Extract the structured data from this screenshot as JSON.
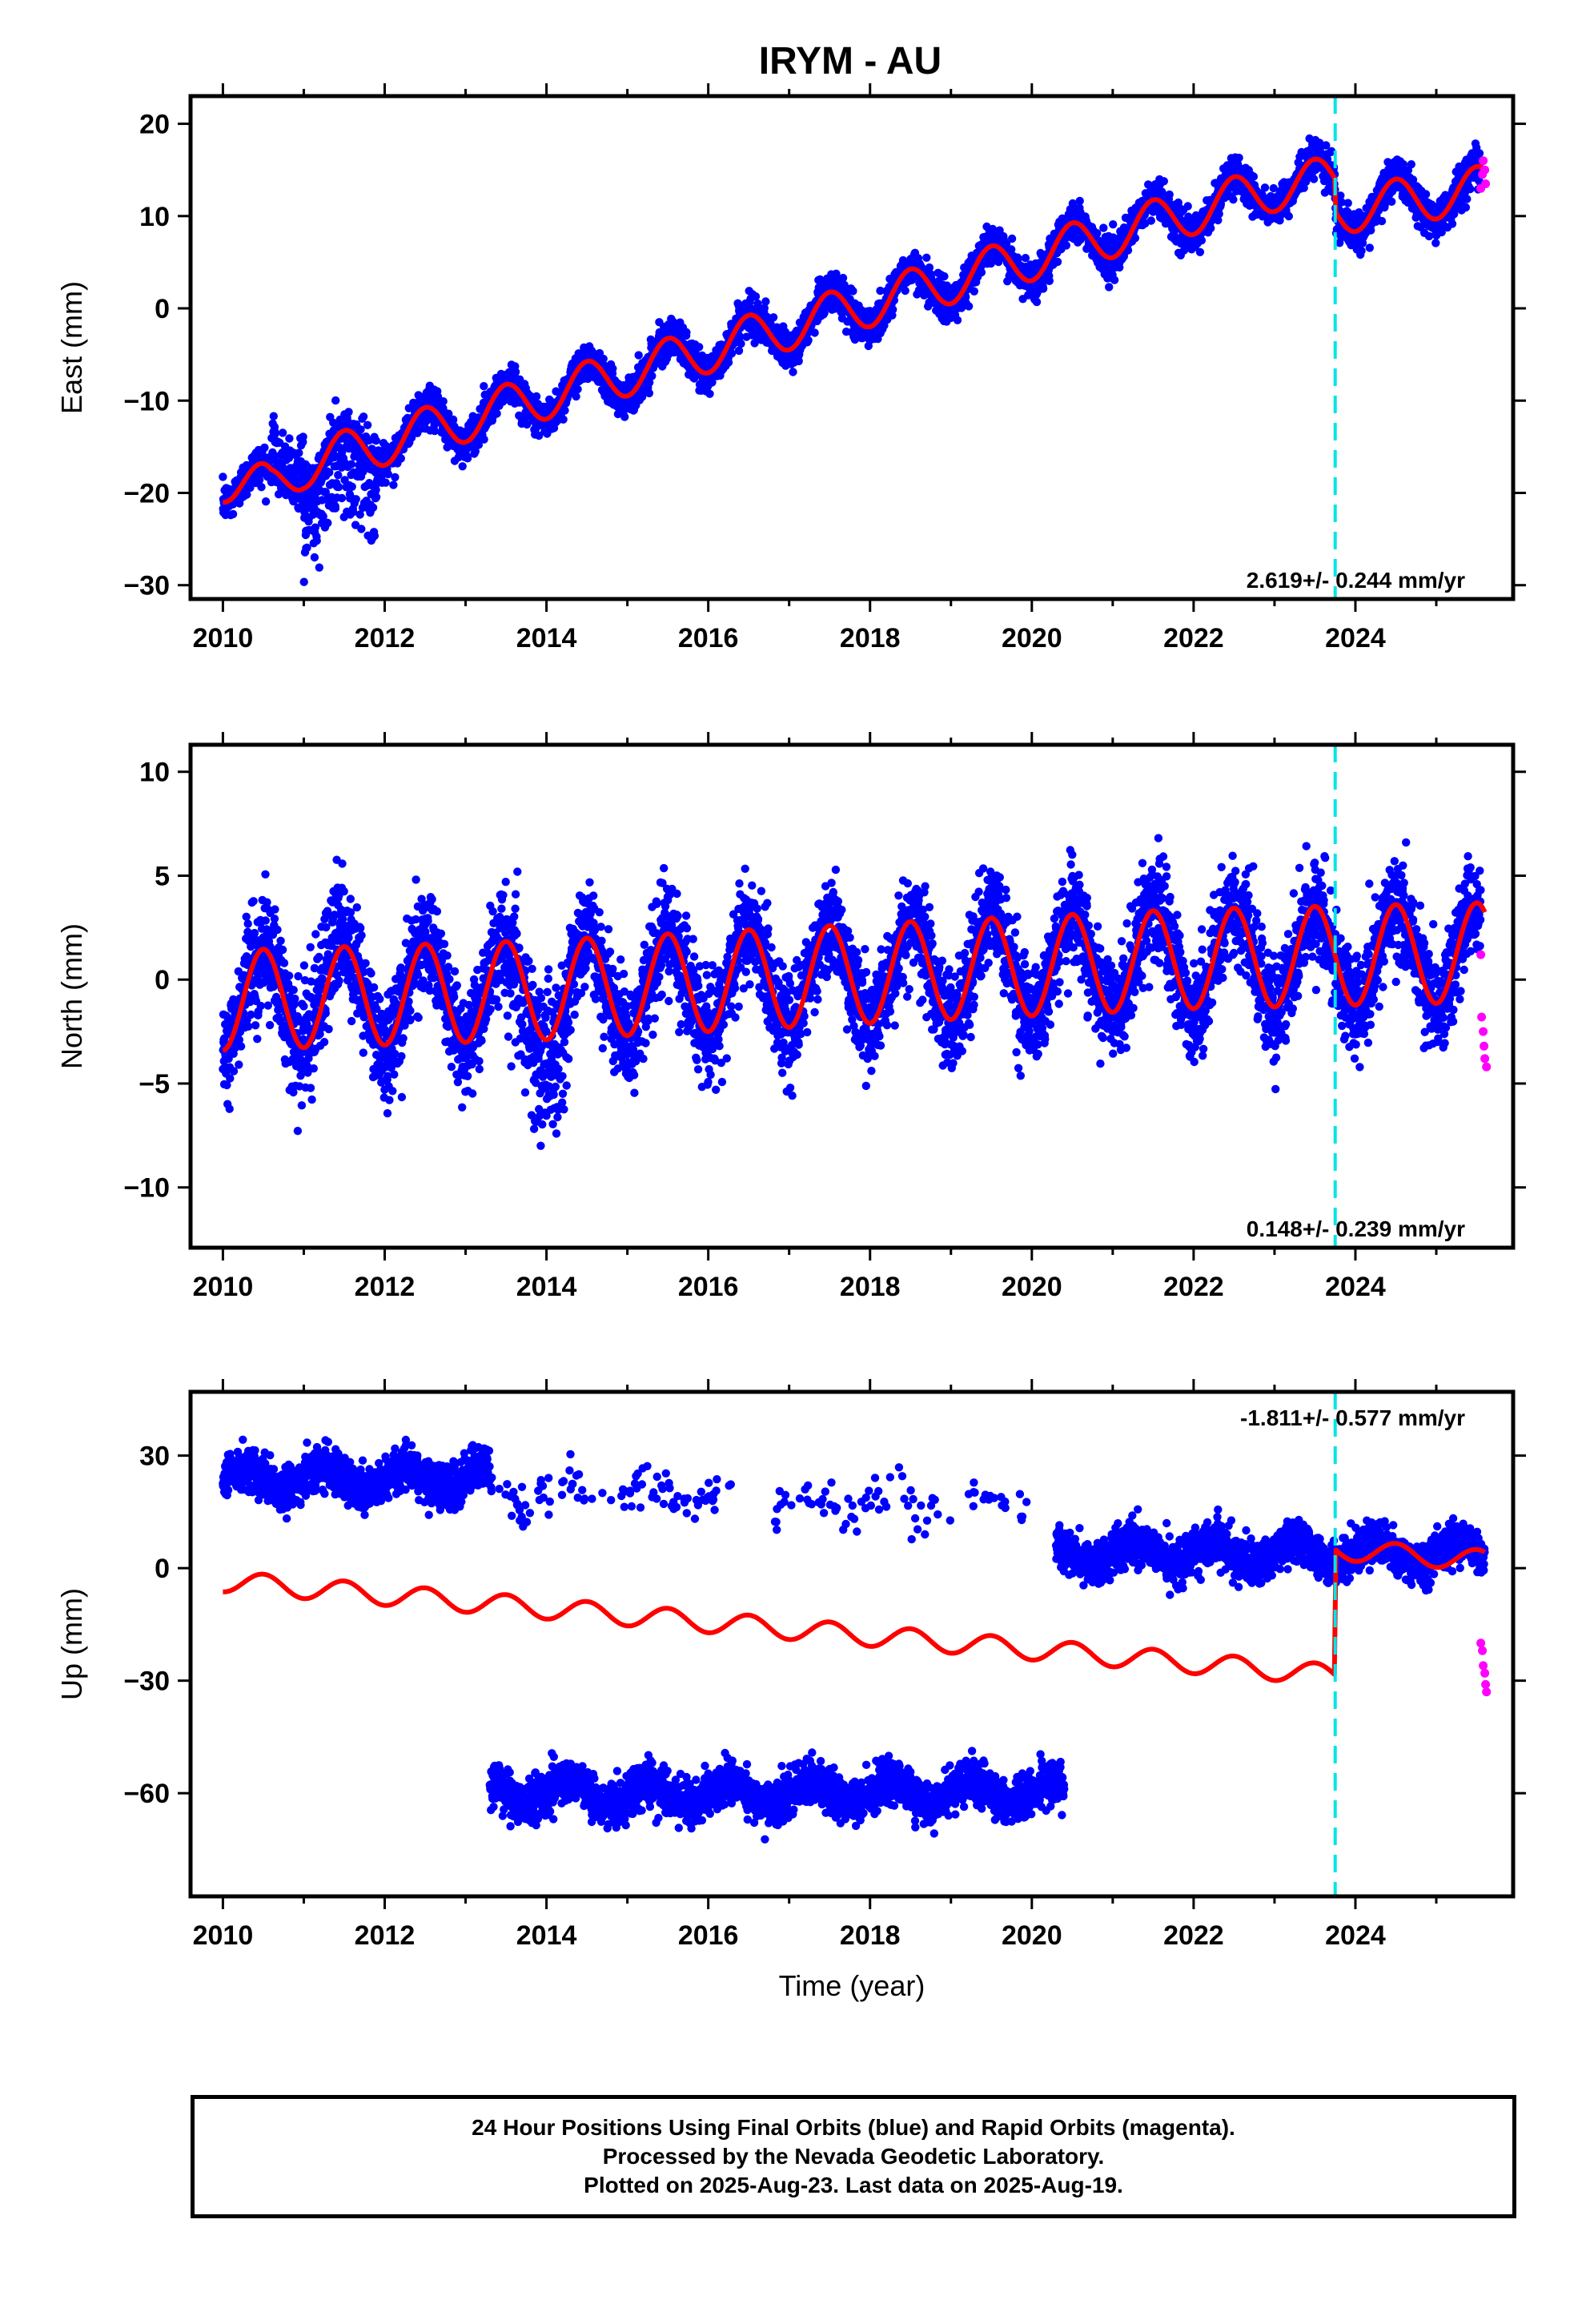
{
  "title": "IRYM - AU",
  "footer": {
    "lines": [
      "24 Hour Positions Using Final Orbits (blue) and Rapid Orbits (magenta).",
      "Processed by the Nevada Geodetic Laboratory.",
      "Plotted on 2025-Aug-23. Last data on 2025-Aug-19."
    ]
  },
  "colors": {
    "final_points": "#0000ff",
    "rapid_points": "#ff00ff",
    "model": "#ff0000",
    "event": "#00e5e5",
    "frame": "#000000"
  },
  "chart_data": [
    {
      "type": "scatter",
      "panel": "east",
      "title": "IRYM - AU",
      "ylabel": "East (mm)",
      "xlabel": "",
      "xlim": [
        2009.6,
        2025.95
      ],
      "ylim": [
        -31.5,
        23
      ],
      "xticks": [
        2010,
        2012,
        2014,
        2016,
        2018,
        2020,
        2022,
        2024
      ],
      "yticks": [
        -30,
        -20,
        -10,
        0,
        10,
        20
      ],
      "yticklabels": [
        "−30",
        "−20",
        "−10",
        "0",
        "10",
        "20"
      ],
      "rate_label": "2.619+/- 0.244 mm/yr",
      "rate_position": "bottom-right",
      "event_x": 2023.75,
      "trend_knots": {
        "x": [
          2010.0,
          2010.6,
          2011.0,
          2012.0,
          2013.0,
          2014.0,
          2015.0,
          2016.0,
          2017.0,
          2018.0,
          2019.0,
          2020.0,
          2021.0,
          2022.0,
          2023.0,
          2023.74,
          2023.76,
          2024.5,
          2025.6
        ],
        "y": [
          -18.5,
          -19.5,
          -17.0,
          -14.5,
          -12.0,
          -9.5,
          -7.0,
          -4.5,
          -2.0,
          0.5,
          3.0,
          5.5,
          8.0,
          10.5,
          13.0,
          14.0,
          10.5,
          11.5,
          13.0
        ]
      },
      "seasonal_amplitude": 2.5,
      "scatter_spread": 1.8,
      "excursions": [
        {
          "x": [
            2011.0,
            2011.9
          ],
          "offset": -8,
          "spread": 6
        },
        {
          "x": [
            2010.6,
            2011.0
          ],
          "offset": 4,
          "spread": 2
        }
      ],
      "rapid_points": {
        "x": [
          2025.55,
          2025.57,
          2025.58,
          2025.6,
          2025.61
        ],
        "y": [
          13.0,
          14.5,
          16.0,
          15.0,
          13.5
        ]
      }
    },
    {
      "type": "scatter",
      "panel": "north",
      "ylabel": "North (mm)",
      "xlabel": "",
      "xlim": [
        2009.6,
        2025.95
      ],
      "ylim": [
        -12.9,
        11.3
      ],
      "xticks": [
        2010,
        2012,
        2014,
        2016,
        2018,
        2020,
        2022,
        2024
      ],
      "yticks": [
        -10,
        -5,
        0,
        5,
        10
      ],
      "yticklabels": [
        "−10",
        "−5",
        "0",
        "5",
        "10"
      ],
      "rate_label": "0.148+/- 0.239 mm/yr",
      "rate_position": "bottom-right",
      "event_x": 2023.75,
      "trend_knots": {
        "x": [
          2010.0,
          2014.0,
          2018.0,
          2022.0,
          2025.6
        ],
        "y": [
          -1.0,
          -0.5,
          0.3,
          1.0,
          1.3
        ]
      },
      "seasonal_amplitude": 2.4,
      "scatter_spread": 2.2,
      "excursions": [
        {
          "x": [
            2013.5,
            2014.3
          ],
          "offset": -4,
          "spread": 3
        },
        {
          "x": [
            2011.0,
            2011.5
          ],
          "offset": 3,
          "spread": 2
        }
      ],
      "rapid_points": {
        "x": [
          2025.55,
          2025.56,
          2025.58,
          2025.59,
          2025.6,
          2025.62
        ],
        "y": [
          1.2,
          -1.8,
          -2.5,
          -3.2,
          -3.8,
          -4.2
        ]
      }
    },
    {
      "type": "scatter",
      "panel": "up",
      "ylabel": "Up (mm)",
      "xlabel": "Time (year)",
      "xlim": [
        2009.6,
        2025.95
      ],
      "ylim": [
        -87.5,
        47
      ],
      "xticks": [
        2010,
        2012,
        2014,
        2016,
        2018,
        2020,
        2022,
        2024
      ],
      "yticks": [
        -60,
        -30,
        0,
        30
      ],
      "yticklabels": [
        "−60",
        "−30",
        "0",
        "30"
      ],
      "rate_label": "-1.811+/- 0.577 mm/yr",
      "rate_position": "top-right",
      "event_x": 2023.75,
      "trend_knots": {
        "x": [
          2010.0,
          2023.74,
          2023.76,
          2025.6
        ],
        "y": [
          -3.5,
          -28.5,
          5.0,
          2.0
        ]
      },
      "seasonal_amplitude": 2.8,
      "clusters": [
        {
          "x": [
            2010.0,
            2013.3
          ],
          "center": 24,
          "spread": 5,
          "density": 1.0
        },
        {
          "x": [
            2013.3,
            2016.3
          ],
          "center": 20,
          "spread": 5,
          "density": 0.08
        },
        {
          "x": [
            2016.8,
            2020.0
          ],
          "center": 17,
          "spread": 6,
          "density": 0.07
        },
        {
          "x": [
            2020.3,
            2025.6
          ],
          "center": 4,
          "spread": 5,
          "density": 1.0
        },
        {
          "x": [
            2013.3,
            2020.4
          ],
          "center": -60,
          "spread": 5,
          "density": 1.0
        }
      ],
      "rapid_points": {
        "x": [
          2025.55,
          2025.57,
          2025.58,
          2025.6,
          2025.61,
          2025.62
        ],
        "y": [
          -20,
          -22,
          -26,
          -28,
          -31,
          -33
        ]
      }
    }
  ]
}
